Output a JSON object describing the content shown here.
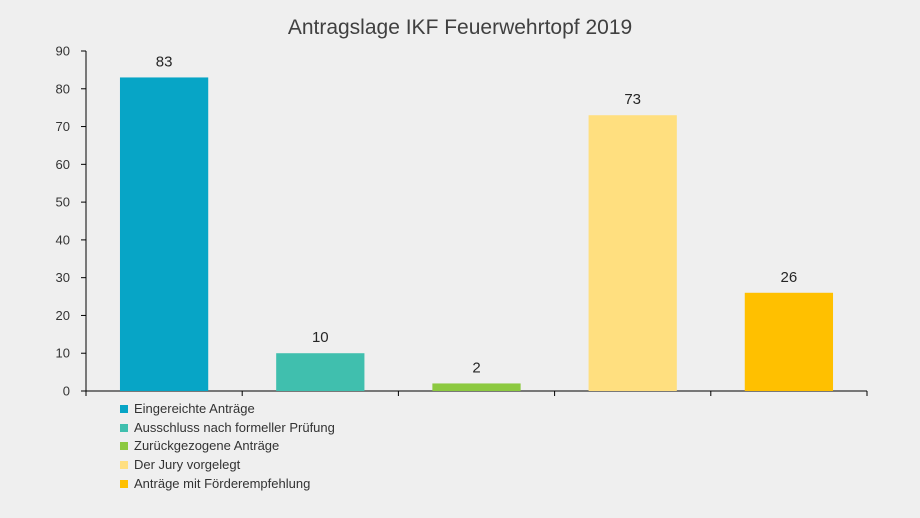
{
  "chart_data": {
    "type": "bar",
    "title": "Antragslage IKF Feuerwehrtopf 2019",
    "ylim": [
      0,
      90
    ],
    "yticks": [
      0,
      10,
      20,
      30,
      40,
      50,
      60,
      70,
      80,
      90
    ],
    "grid": false,
    "legend_position": "bottom-left",
    "series": [
      {
        "name": "Eingereichte Anträge",
        "values": [
          83
        ],
        "color": "#07a5c6"
      },
      {
        "name": "Ausschluss nach formeller Prüfung",
        "values": [
          10
        ],
        "color": "#40bfae"
      },
      {
        "name": "Zurückgezogene Anträge",
        "values": [
          2
        ],
        "color": "#8cc940"
      },
      {
        "name": "Der Jury vorgelegt",
        "values": [
          73
        ],
        "color": "#ffdf7f"
      },
      {
        "name": "Anträge mit Förderempfehlung",
        "values": [
          26
        ],
        "color": "#ffc000"
      }
    ]
  }
}
